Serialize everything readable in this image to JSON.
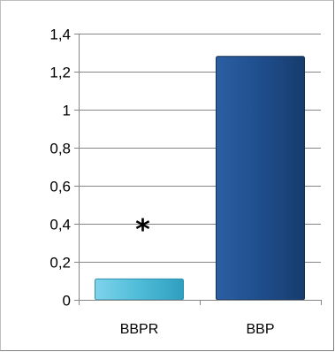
{
  "chart_data": {
    "type": "bar",
    "categories": [
      "BBPR",
      "BBP"
    ],
    "values": [
      0.11,
      1.28
    ],
    "ylim": [
      0,
      1.4
    ],
    "yticks": [
      "0",
      "0,2",
      "0,4",
      "0,6",
      "0,8",
      "1",
      "1,2",
      "1,4"
    ],
    "grid": true,
    "bar_colors": [
      "#4fbcd8",
      "#1f4e8c"
    ],
    "annotations": [
      {
        "category": "BBPR",
        "text": "*"
      }
    ]
  }
}
